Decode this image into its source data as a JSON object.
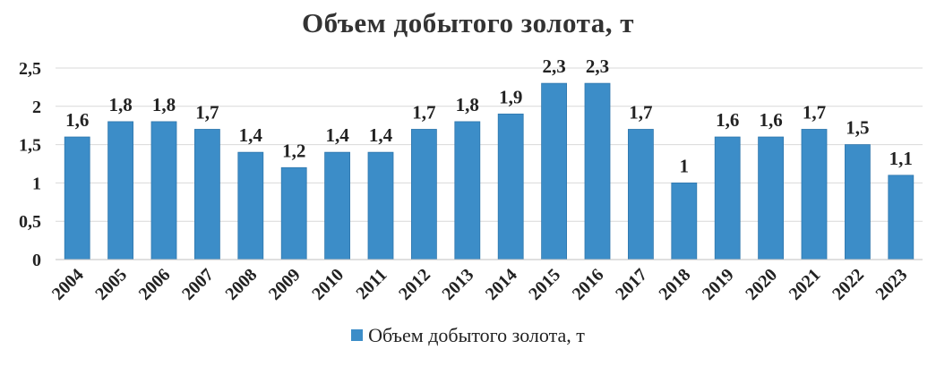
{
  "chart_data": {
    "type": "bar",
    "title": "Объем добытого золота, т",
    "xlabel": "",
    "ylabel": "",
    "categories": [
      "2004",
      "2005",
      "2006",
      "2007",
      "2008",
      "2009",
      "2010",
      "2011",
      "2012",
      "2013",
      "2014",
      "2015",
      "2016",
      "2017",
      "2018",
      "2019",
      "2020",
      "2021",
      "2022",
      "2023"
    ],
    "series": [
      {
        "name": "Объем добытого золота, т",
        "values": [
          1.6,
          1.8,
          1.8,
          1.7,
          1.4,
          1.2,
          1.4,
          1.4,
          1.7,
          1.8,
          1.9,
          2.3,
          2.3,
          1.7,
          1.0,
          1.6,
          1.6,
          1.7,
          1.5,
          1.1
        ],
        "data_labels": [
          "1,6",
          "1,8",
          "1,8",
          "1,7",
          "1,4",
          "1,2",
          "1,4",
          "1,4",
          "1,7",
          "1,8",
          "1,9",
          "2,3",
          "2,3",
          "1,7",
          "1",
          "1,6",
          "1,6",
          "1,7",
          "1,5",
          "1,1"
        ]
      }
    ],
    "ylim": [
      0,
      2.5
    ],
    "yticks": [
      0,
      0.5,
      1,
      1.5,
      2,
      2.5
    ],
    "ytick_labels": [
      "0",
      "0,5",
      "1",
      "1,5",
      "2",
      "2,5"
    ],
    "grid": true,
    "legend": "bottom",
    "colors": {
      "bar": "#3c8dc8",
      "bar_edge": "#2f77ad",
      "grid": "#d9d9d9",
      "text": "#222222"
    }
  }
}
